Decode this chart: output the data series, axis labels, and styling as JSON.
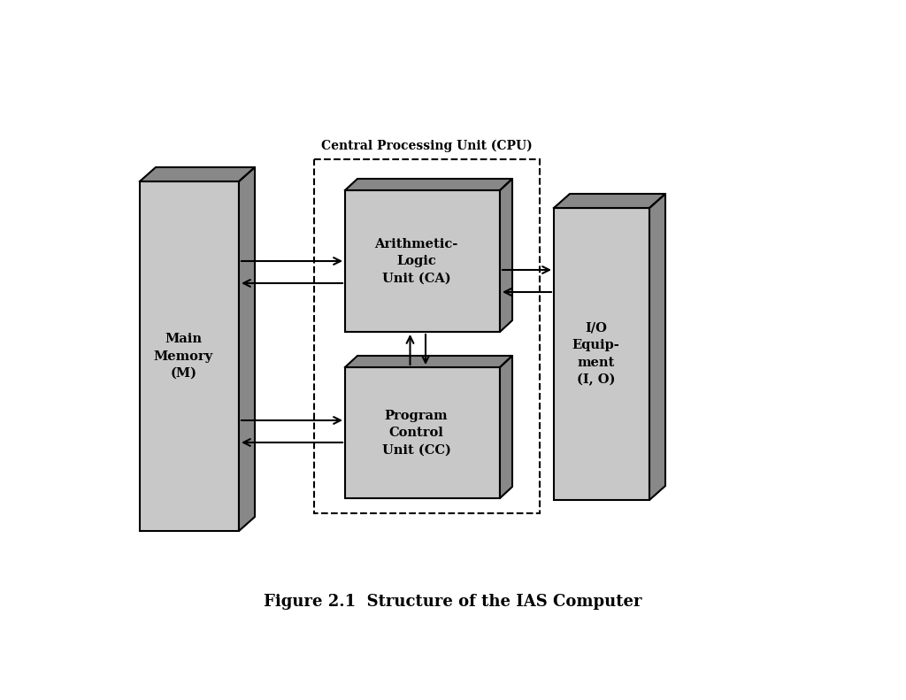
{
  "fig_width": 10.24,
  "fig_height": 7.91,
  "bg_color": "#ffffff",
  "title": "Figure 2.1  Structure of the IAS Computer",
  "title_fontsize": 13,
  "cpu_label": "Central Processing Unit (CPU)",
  "main_memory_label": "Main\nMemory\n(M)",
  "alu_label": "Arithmetic-\nLogic\nUnit (CA)",
  "pcu_label": "Program\nControl\nUnit (CC)",
  "io_label": "I/O\nEquip-\nment\n(I, O)",
  "face_color": "#c8c8c8",
  "dark_color": "#888888",
  "edge_color": "#000000",
  "lw": 1.5
}
